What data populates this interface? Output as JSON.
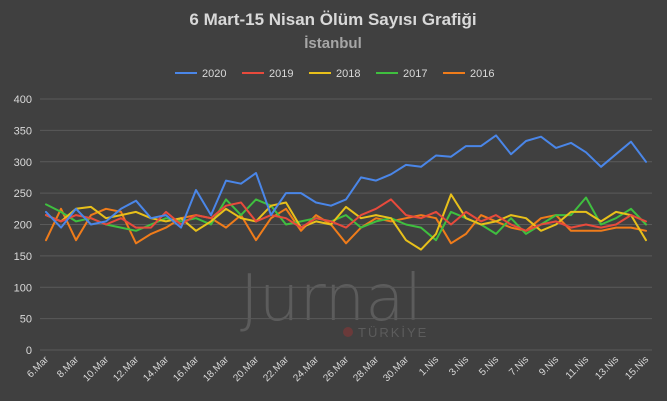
{
  "chart_data": {
    "type": "line",
    "title": "6 Mart-15 Nisan Ölüm Sayısı Grafiği",
    "subtitle": "İstanbul",
    "xlabel": "",
    "ylabel": "",
    "ylim": [
      0,
      400
    ],
    "yticks": [
      0,
      50,
      100,
      150,
      200,
      250,
      300,
      350,
      400
    ],
    "grid": true,
    "legend_position": "top",
    "x": [
      "6.Mar",
      "7.Mar",
      "8.Mar",
      "9.Mar",
      "10.Mar",
      "11.Mar",
      "12.Mar",
      "13.Mar",
      "14.Mar",
      "15.Mar",
      "16.Mar",
      "17.Mar",
      "18.Mar",
      "19.Mar",
      "20.Mar",
      "21.Mar",
      "22.Mar",
      "23.Mar",
      "24.Mar",
      "25.Mar",
      "26.Mar",
      "27.Mar",
      "28.Mar",
      "29.Mar",
      "30.Mar",
      "31.Mar",
      "1.Nis",
      "2.Nis",
      "3.Nis",
      "4.Nis",
      "5.Nis",
      "6.Nis",
      "7.Nis",
      "8.Nis",
      "9.Nis",
      "10.Nis",
      "11.Nis",
      "12.Nis",
      "13.Nis",
      "14.Nis",
      "15.Nis"
    ],
    "xtick_labels": [
      "6.Mar",
      "8.Mar",
      "10.Mar",
      "12.Mar",
      "14.Mar",
      "16.Mar",
      "18.Mar",
      "20.Mar",
      "22.Mar",
      "24.Mar",
      "26.Mar",
      "28.Mar",
      "30.Mar",
      "1.Nis",
      "3.Nis",
      "5.Nis",
      "7.Nis",
      "9.Nis",
      "11.Nis",
      "13.Nis",
      "15.Nis"
    ],
    "series": [
      {
        "name": "2020",
        "color": "#4a86e8",
        "values": [
          220,
          195,
          225,
          200,
          205,
          225,
          238,
          210,
          215,
          195,
          255,
          215,
          270,
          265,
          282,
          215,
          250,
          250,
          235,
          230,
          240,
          275,
          270,
          280,
          295,
          292,
          310,
          308,
          325,
          325,
          342,
          312,
          333,
          340,
          322,
          330,
          315,
          292,
          312,
          332,
          300
        ]
      },
      {
        "name": "2019",
        "color": "#e84a3c",
        "values": [
          215,
          205,
          215,
          210,
          200,
          210,
          195,
          195,
          220,
          200,
          215,
          210,
          230,
          235,
          205,
          215,
          210,
          195,
          210,
          205,
          195,
          215,
          225,
          240,
          215,
          210,
          220,
          200,
          220,
          205,
          215,
          200,
          190,
          200,
          205,
          195,
          200,
          195,
          200,
          215,
          205
        ]
      },
      {
        "name": "2018",
        "color": "#e8c01a",
        "values": [
          215,
          205,
          225,
          228,
          210,
          215,
          220,
          210,
          205,
          210,
          190,
          205,
          225,
          210,
          205,
          230,
          235,
          195,
          205,
          200,
          228,
          210,
          215,
          210,
          175,
          160,
          185,
          248,
          210,
          200,
          205,
          215,
          210,
          190,
          200,
          220,
          220,
          205,
          220,
          215,
          175
        ]
      },
      {
        "name": "2017",
        "color": "#3fbf3f",
        "values": [
          232,
          220,
          205,
          210,
          200,
          195,
          190,
          200,
          210,
          205,
          210,
          200,
          240,
          215,
          240,
          230,
          200,
          205,
          210,
          205,
          215,
          195,
          205,
          210,
          200,
          195,
          175,
          220,
          210,
          200,
          185,
          210,
          185,
          200,
          215,
          215,
          243,
          200,
          210,
          225,
          200
        ]
      },
      {
        "name": "2016",
        "color": "#f07c1a",
        "values": [
          175,
          225,
          175,
          215,
          225,
          220,
          170,
          185,
          195,
          210,
          215,
          210,
          195,
          215,
          175,
          210,
          225,
          190,
          215,
          200,
          170,
          195,
          210,
          205,
          210,
          215,
          210,
          170,
          185,
          215,
          205,
          195,
          190,
          210,
          215,
          190,
          190,
          190,
          195,
          195,
          190
        ]
      }
    ]
  },
  "watermark": {
    "text": "Jurnal",
    "subtext": "TÜRKİYE"
  }
}
